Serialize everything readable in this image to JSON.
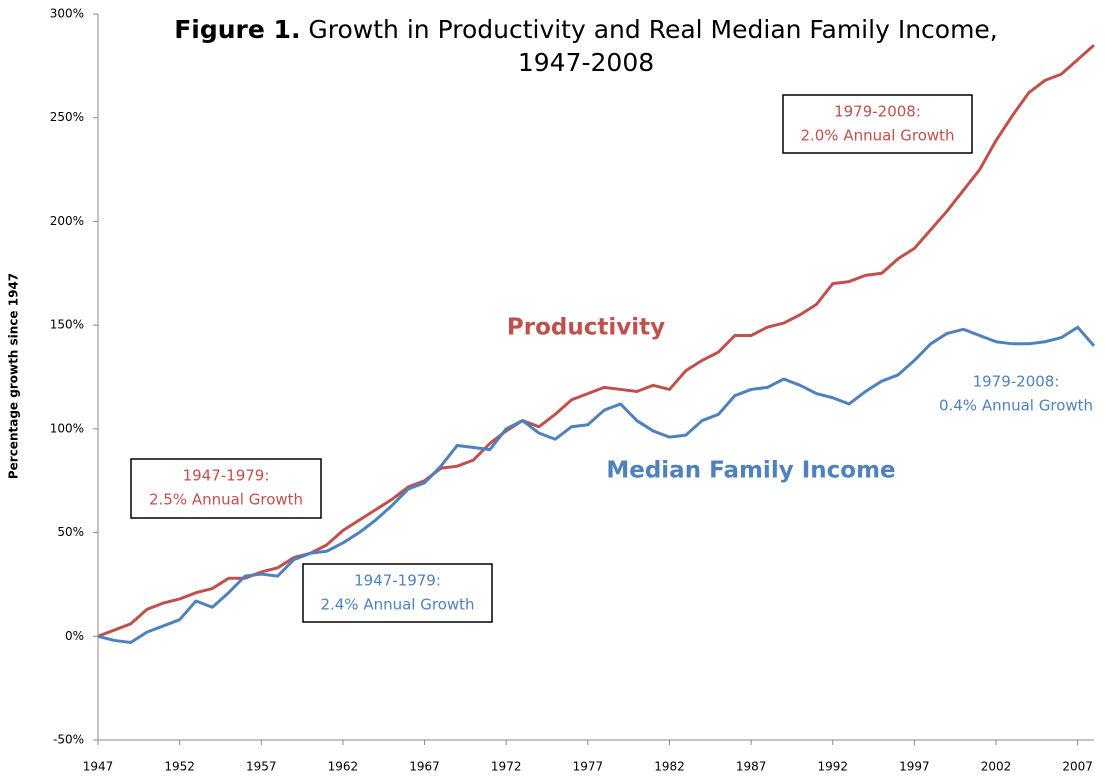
{
  "chart_data": {
    "type": "line",
    "figure_label": "Figure 1.",
    "title": "Growth in Productivity and Real Median Family Income, 1947-2008",
    "ylabel": "Percentage growth since 1947",
    "x": [
      1947,
      1948,
      1949,
      1950,
      1951,
      1952,
      1953,
      1954,
      1955,
      1956,
      1957,
      1958,
      1959,
      1960,
      1961,
      1962,
      1963,
      1964,
      1965,
      1966,
      1967,
      1968,
      1969,
      1970,
      1971,
      1972,
      1973,
      1974,
      1975,
      1976,
      1977,
      1978,
      1979,
      1980,
      1981,
      1982,
      1983,
      1984,
      1985,
      1986,
      1987,
      1988,
      1989,
      1990,
      1991,
      1992,
      1993,
      1994,
      1995,
      1996,
      1997,
      1998,
      1999,
      2000,
      2001,
      2002,
      2003,
      2004,
      2005,
      2006,
      2007,
      2008
    ],
    "series": [
      {
        "name": "Productivity",
        "color": "#c0504d",
        "values": [
          0,
          3,
          6,
          13,
          16,
          18,
          21,
          23,
          28,
          28,
          31,
          33,
          38,
          40,
          44,
          51,
          56,
          61,
          66,
          72,
          75,
          81,
          82,
          85,
          93,
          99,
          104,
          101,
          107,
          114,
          117,
          120,
          119,
          118,
          121,
          119,
          128,
          133,
          137,
          145,
          145,
          149,
          151,
          155,
          160,
          170,
          171,
          174,
          175,
          182,
          187,
          196,
          205,
          215,
          225,
          239,
          251,
          262,
          268,
          271,
          278,
          285
        ]
      },
      {
        "name": "Median Family Income",
        "color": "#4f81bd",
        "values": [
          0,
          -2,
          -3,
          2,
          5,
          8,
          17,
          14,
          21,
          29,
          30,
          29,
          37,
          40,
          41,
          45,
          50,
          56,
          63,
          71,
          74,
          82,
          92,
          91,
          90,
          100,
          104,
          98,
          95,
          101,
          102,
          109,
          112,
          104,
          99,
          96,
          97,
          104,
          107,
          116,
          119,
          120,
          124,
          121,
          117,
          115,
          112,
          118,
          123,
          126,
          133,
          141,
          146,
          148,
          145,
          142,
          141,
          141,
          142,
          144,
          149,
          140
        ]
      }
    ],
    "xlim": [
      1947,
      2008
    ],
    "xticks": [
      1947,
      1952,
      1957,
      1962,
      1967,
      1972,
      1977,
      1982,
      1987,
      1992,
      1997,
      2002,
      2007
    ],
    "ylim": [
      -50,
      300
    ],
    "yticks": [
      {
        "value": -50,
        "label": "-50%"
      },
      {
        "value": 0,
        "label": "0%"
      },
      {
        "value": 50,
        "label": "50%"
      },
      {
        "value": 100,
        "label": "100%"
      },
      {
        "value": 150,
        "label": "150%"
      },
      {
        "value": 200,
        "label": "200%"
      },
      {
        "value": 250,
        "label": "250%"
      },
      {
        "value": 300,
        "label": "300%"
      }
    ],
    "annotations": [
      {
        "lines": [
          "1979-2008:",
          "2.0% Annual Growth"
        ],
        "color": "#c0504d"
      },
      {
        "lines": [
          "1947-1979:",
          "2.5% Annual Growth"
        ],
        "color": "#c0504d"
      },
      {
        "lines": [
          "1947-1979:",
          "2.4% Annual Growth"
        ],
        "color": "#4f81bd"
      },
      {
        "lines": [
          "1979-2008:",
          "0.4% Annual Growth"
        ],
        "color": "#4f81bd"
      }
    ]
  }
}
